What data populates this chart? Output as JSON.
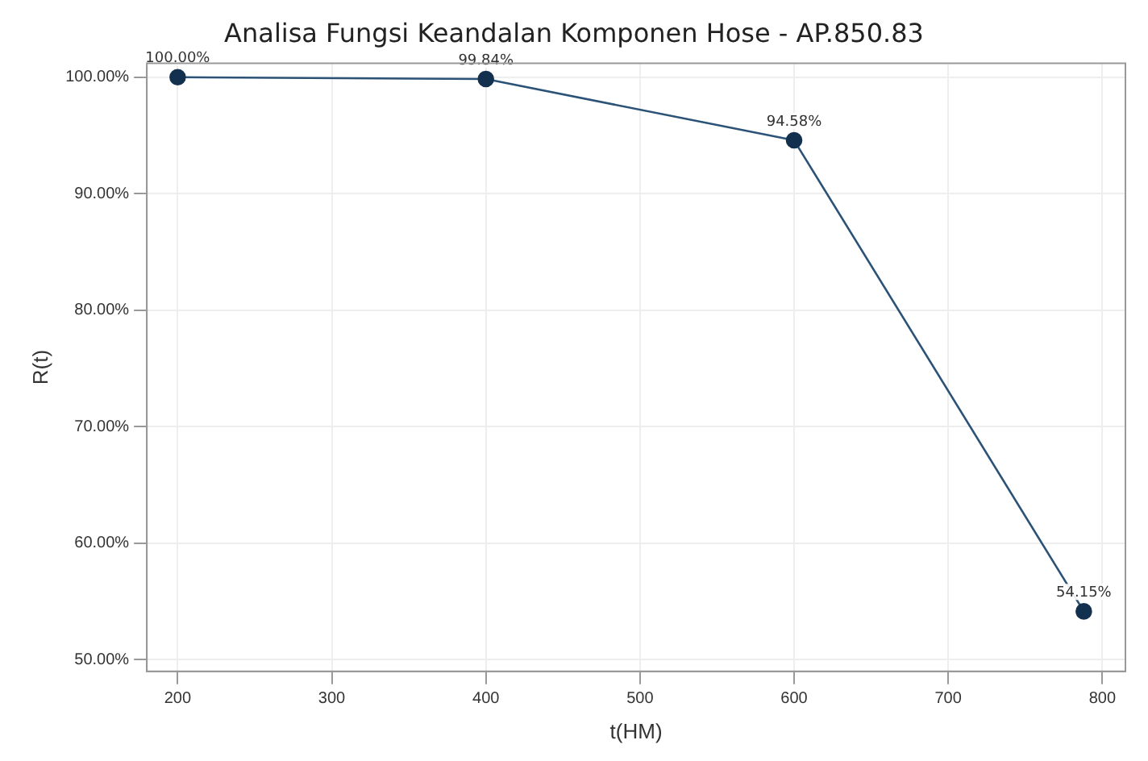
{
  "chart_data": {
    "type": "line",
    "title": "Analisa Fungsi Keandalan Komponen Hose - AP.850.83",
    "xlabel": "t(HM)",
    "ylabel": "R(t)",
    "x": [
      200,
      400,
      600,
      788
    ],
    "series": [
      {
        "color": "#2b5277",
        "values": [
          100,
          99.84,
          94.58,
          54.15
        ],
        "value_labels": [
          "100.00%",
          "99.84%",
          "94.58%",
          "54.15%"
        ]
      }
    ],
    "xlim": [
      180,
      815
    ],
    "xticks": [
      200,
      300,
      400,
      500,
      600,
      700,
      800
    ],
    "ylim": [
      49,
      101.2
    ],
    "yticks": [
      {
        "value": 50,
        "label": "50.00%"
      },
      {
        "value": 60,
        "label": "60.00%"
      },
      {
        "value": 70,
        "label": "70.00%"
      },
      {
        "value": 80,
        "label": "80.00%"
      },
      {
        "value": 90,
        "label": "90.00%"
      },
      {
        "value": 100,
        "label": "100.00%"
      }
    ],
    "grid": true,
    "legend": false,
    "marker": "circle",
    "line_style": "solid"
  }
}
